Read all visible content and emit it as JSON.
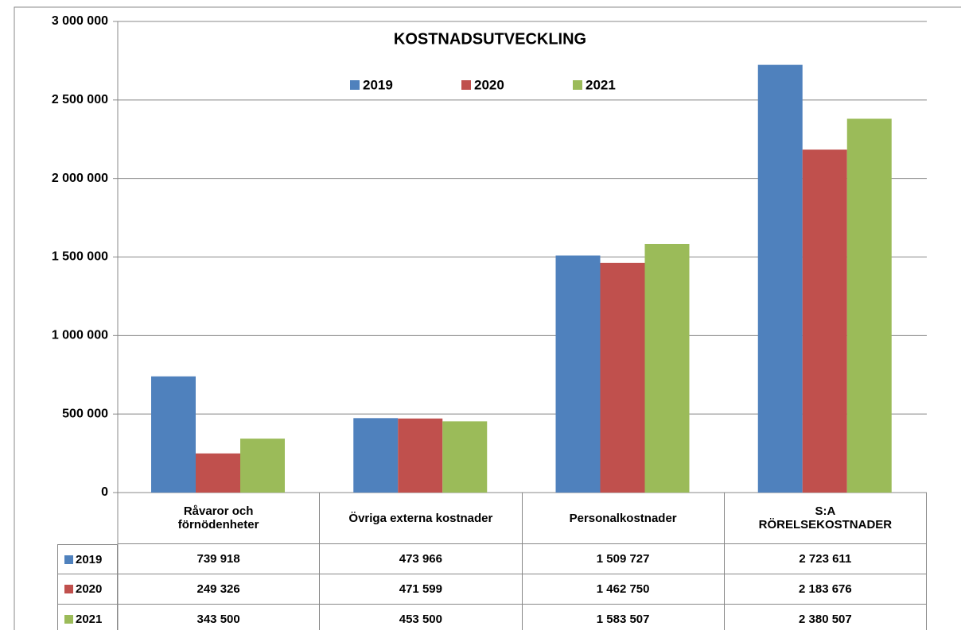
{
  "chart_data": {
    "type": "bar",
    "title": "KOSTNADSUTVECKLING",
    "categories": [
      "Råvaror och förnödenheter",
      "Övriga externa kostnader",
      "Personalkostnader",
      "S:A RÖRELSEKOSTNADER"
    ],
    "series": [
      {
        "name": "2019",
        "color": "#4f81bd",
        "values": [
          739918,
          473966,
          1509727,
          2723611
        ],
        "value_labels": [
          "739 918",
          "473 966",
          "1 509 727",
          "2 723 611"
        ]
      },
      {
        "name": "2020",
        "color": "#c0504d",
        "values": [
          249326,
          471599,
          1462750,
          2183676
        ],
        "value_labels": [
          "249 326",
          "471 599",
          "1 462 750",
          "2 183 676"
        ]
      },
      {
        "name": "2021",
        "color": "#9bbb59",
        "values": [
          343500,
          453500,
          1583507,
          2380507
        ],
        "value_labels": [
          "343 500",
          "453 500",
          "1 583 507",
          "2 380 507"
        ]
      }
    ],
    "ylim": [
      0,
      3000000
    ],
    "yticks": [
      0,
      {
        "value": 500000,
        "label": "500 000"
      },
      {
        "value": 1000000,
        "label": "1 000 000"
      },
      {
        "value": 1500000,
        "label": "1 500 000"
      },
      {
        "value": 2000000,
        "label": "2 000 000"
      },
      {
        "value": 2500000,
        "label": "2 500 000"
      },
      {
        "value": 3000000,
        "label": "3 000 000"
      }
    ],
    "grid": true,
    "legend": "top"
  }
}
